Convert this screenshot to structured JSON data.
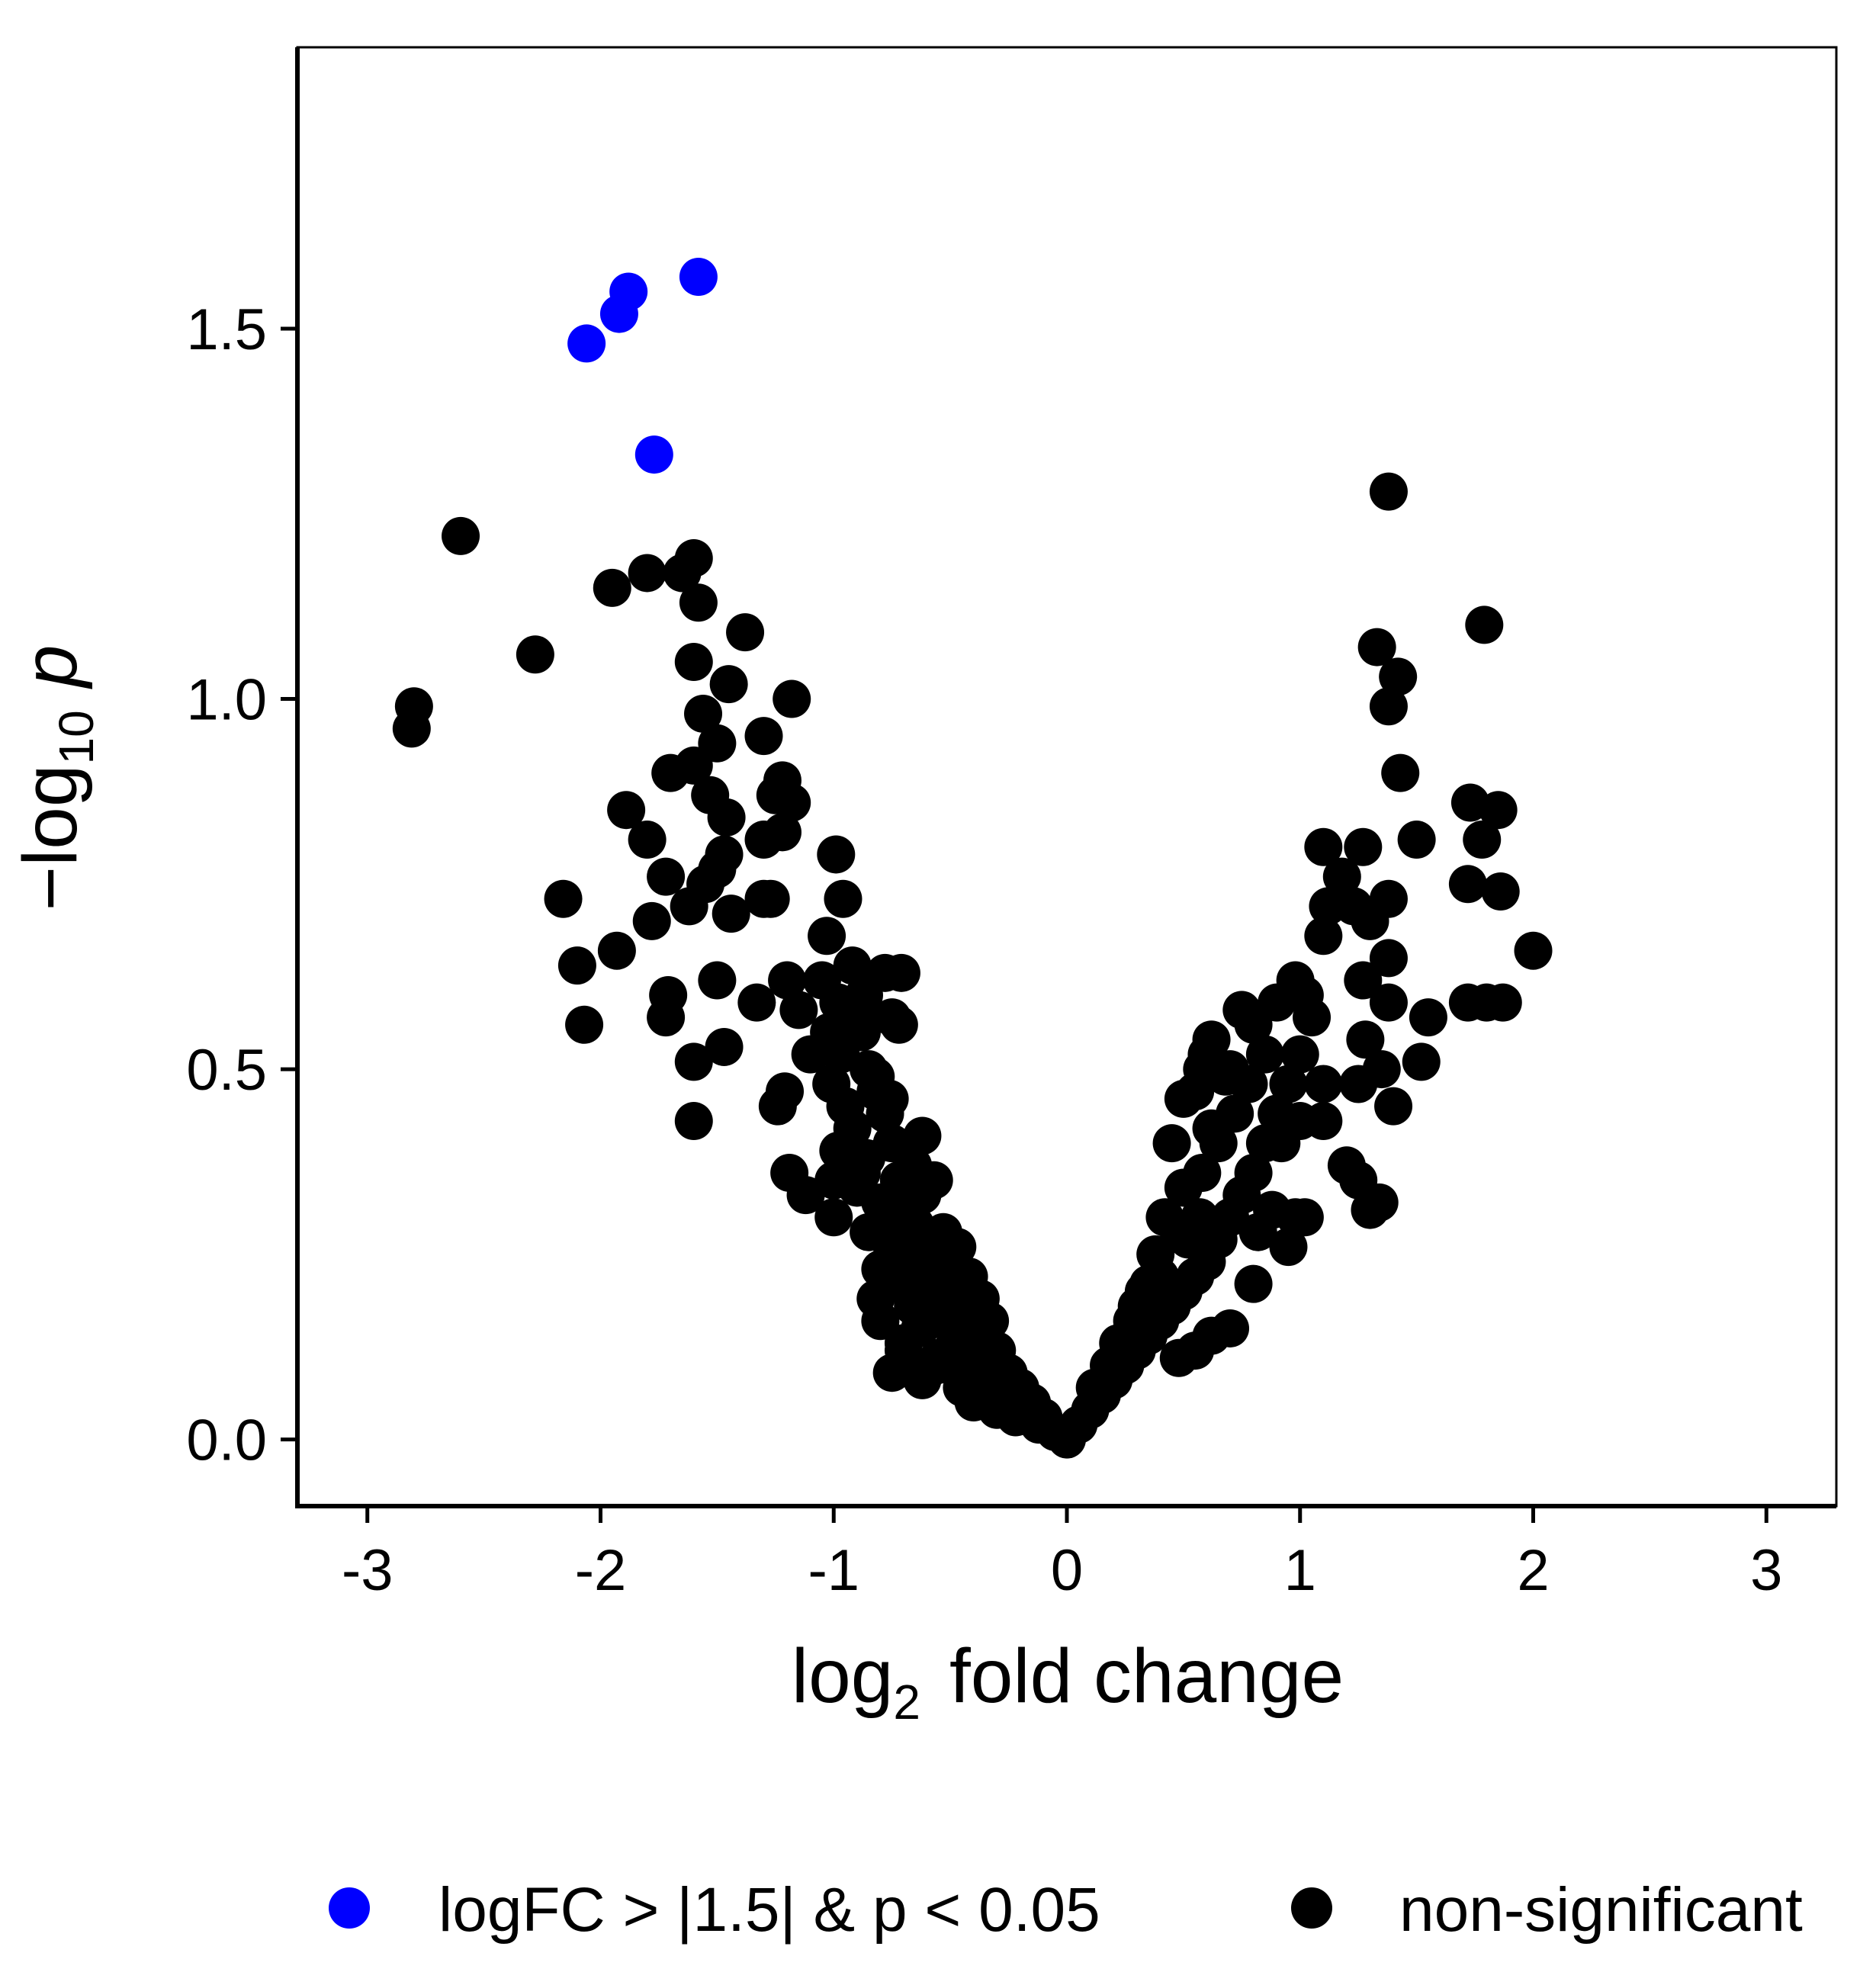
{
  "chart_data": {
    "type": "scatter",
    "title": "",
    "xlabel": {
      "base": "log",
      "sub": "2",
      "rest": "fold change"
    },
    "ylabel": {
      "prefix": "−log",
      "sub": "10",
      "var": "p"
    },
    "xlim": [
      -3.3,
      3.3
    ],
    "ylim": [
      -0.09,
      1.88
    ],
    "x_ticks": [
      "-3",
      "-2",
      "-1",
      "0",
      "1",
      "2",
      "3"
    ],
    "y_ticks": [
      "0.0",
      "0.5",
      "1.0",
      "1.5"
    ],
    "legend_position": "bottom",
    "series": [
      {
        "name": "logFC > |1.5| & p < 0.05",
        "color": "#0000ff",
        "points": [
          [
            -1.58,
            1.57
          ],
          [
            -1.88,
            1.55
          ],
          [
            -1.92,
            1.52
          ],
          [
            -2.06,
            1.48
          ],
          [
            -1.77,
            1.33
          ]
        ]
      },
      {
        "name": "non-significant",
        "color": "#000000",
        "points": [
          [
            -2.6,
            1.22
          ],
          [
            -2.8,
            0.99
          ],
          [
            -2.81,
            0.96
          ],
          [
            -2.28,
            1.06
          ],
          [
            -1.95,
            1.15
          ],
          [
            -1.8,
            1.17
          ],
          [
            -1.6,
            1.19
          ],
          [
            -1.65,
            1.17
          ],
          [
            -1.58,
            1.13
          ],
          [
            -1.38,
            1.09
          ],
          [
            -1.6,
            1.05
          ],
          [
            -1.45,
            1.02
          ],
          [
            -1.18,
            1.0
          ],
          [
            -1.56,
            0.98
          ],
          [
            -1.3,
            0.95
          ],
          [
            -1.5,
            0.94
          ],
          [
            -1.7,
            0.9
          ],
          [
            -1.6,
            0.91
          ],
          [
            -1.22,
            0.89
          ],
          [
            -1.25,
            0.87
          ],
          [
            -1.53,
            0.87
          ],
          [
            -1.18,
            0.86
          ],
          [
            -1.89,
            0.85
          ],
          [
            -1.46,
            0.84
          ],
          [
            -1.22,
            0.82
          ],
          [
            -1.8,
            0.81
          ],
          [
            -1.3,
            0.81
          ],
          [
            -1.47,
            0.79
          ],
          [
            -0.99,
            0.79
          ],
          [
            -1.5,
            0.77
          ],
          [
            -1.72,
            0.76
          ],
          [
            -1.55,
            0.75
          ],
          [
            -1.3,
            0.73
          ],
          [
            -2.16,
            0.73
          ],
          [
            -1.27,
            0.73
          ],
          [
            -0.96,
            0.73
          ],
          [
            -1.62,
            0.72
          ],
          [
            -1.44,
            0.71
          ],
          [
            -1.78,
            0.7
          ],
          [
            -1.03,
            0.68
          ],
          [
            -1.93,
            0.66
          ],
          [
            -2.1,
            0.64
          ],
          [
            -0.92,
            0.64
          ],
          [
            -0.71,
            0.63
          ],
          [
            -1.2,
            0.62
          ],
          [
            -1.5,
            0.62
          ],
          [
            -1.33,
            0.59
          ],
          [
            -1.71,
            0.6
          ],
          [
            -1.72,
            0.57
          ],
          [
            -2.07,
            0.56
          ],
          [
            -0.75,
            0.57
          ],
          [
            -0.72,
            0.56
          ],
          [
            -1.47,
            0.53
          ],
          [
            -1.6,
            0.51
          ],
          [
            -1.21,
            0.47
          ],
          [
            -1.24,
            0.45
          ],
          [
            -1.6,
            0.43
          ],
          [
            -1.19,
            0.36
          ],
          [
            -0.93,
            0.58
          ],
          [
            -0.88,
            0.55
          ],
          [
            -1.02,
            0.55
          ],
          [
            -0.97,
            0.52
          ],
          [
            -0.85,
            0.5
          ],
          [
            -1.01,
            0.48
          ],
          [
            -0.82,
            0.47
          ],
          [
            -0.95,
            0.45
          ],
          [
            -0.78,
            0.44
          ],
          [
            -0.92,
            0.42
          ],
          [
            -0.75,
            0.4
          ],
          [
            -0.98,
            0.39
          ],
          [
            -0.86,
            0.38
          ],
          [
            -0.66,
            0.37
          ],
          [
            -0.72,
            0.35
          ],
          [
            -0.9,
            0.34
          ],
          [
            -0.62,
            0.33
          ],
          [
            -0.8,
            0.32
          ],
          [
            -1.0,
            0.3
          ],
          [
            -0.7,
            0.3
          ],
          [
            -0.65,
            0.29
          ],
          [
            -0.85,
            0.28
          ],
          [
            -0.6,
            0.27
          ],
          [
            -0.75,
            0.26
          ],
          [
            -0.55,
            0.25
          ],
          [
            -0.68,
            0.24
          ],
          [
            -0.8,
            0.23
          ],
          [
            -0.5,
            0.22
          ],
          [
            -0.62,
            0.22
          ],
          [
            -0.72,
            0.21
          ],
          [
            -0.45,
            0.2
          ],
          [
            -0.58,
            0.19
          ],
          [
            -0.66,
            0.18
          ],
          [
            -0.4,
            0.17
          ],
          [
            -0.52,
            0.16
          ],
          [
            -0.63,
            0.15
          ],
          [
            -0.35,
            0.14
          ],
          [
            -0.48,
            0.13
          ],
          [
            -0.7,
            0.12
          ],
          [
            -0.3,
            0.12
          ],
          [
            -0.43,
            0.11
          ],
          [
            -0.56,
            0.1
          ],
          [
            -0.25,
            0.09
          ],
          [
            -0.38,
            0.09
          ],
          [
            -0.2,
            0.07
          ],
          [
            -0.32,
            0.07
          ],
          [
            -0.15,
            0.05
          ],
          [
            -0.27,
            0.06
          ],
          [
            -0.1,
            0.03
          ],
          [
            -0.18,
            0.04
          ],
          [
            -0.05,
            0.01
          ],
          [
            -0.12,
            0.02
          ],
          [
            0.0,
            0.0
          ],
          [
            0.05,
            0.02
          ],
          [
            0.1,
            0.04
          ],
          [
            0.15,
            0.06
          ],
          [
            0.2,
            0.08
          ],
          [
            0.25,
            0.1
          ],
          [
            0.3,
            0.12
          ],
          [
            0.35,
            0.14
          ],
          [
            0.4,
            0.16
          ],
          [
            0.45,
            0.18
          ],
          [
            0.5,
            0.2
          ],
          [
            0.55,
            0.22
          ],
          [
            0.6,
            0.24
          ],
          [
            0.65,
            0.27
          ],
          [
            0.7,
            0.3
          ],
          [
            0.75,
            0.33
          ],
          [
            0.8,
            0.36
          ],
          [
            0.85,
            0.4
          ],
          [
            0.9,
            0.44
          ],
          [
            0.95,
            0.48
          ],
          [
            1.0,
            0.52
          ],
          [
            0.8,
            0.56
          ],
          [
            0.9,
            0.59
          ],
          [
            0.98,
            0.62
          ],
          [
            0.6,
            0.52
          ],
          [
            0.55,
            0.47
          ],
          [
            0.7,
            0.5
          ],
          [
            0.42,
            0.3
          ],
          [
            0.5,
            0.34
          ],
          [
            0.65,
            0.4
          ],
          [
            0.72,
            0.44
          ],
          [
            0.78,
            0.48
          ],
          [
            0.85,
            0.52
          ],
          [
            0.62,
            0.42
          ],
          [
            0.38,
            0.25
          ],
          [
            0.48,
            0.28
          ],
          [
            0.58,
            0.36
          ],
          [
            0.3,
            0.18
          ],
          [
            0.35,
            0.21
          ],
          [
            0.22,
            0.13
          ],
          [
            0.28,
            0.16
          ],
          [
            0.18,
            0.1
          ],
          [
            0.12,
            0.07
          ],
          [
            0.88,
            0.31
          ],
          [
            0.82,
            0.28
          ],
          [
            0.95,
            0.26
          ],
          [
            0.8,
            0.21
          ],
          [
            0.7,
            0.15
          ],
          [
            0.55,
            0.12
          ],
          [
            0.62,
            0.14
          ],
          [
            0.48,
            0.11
          ],
          [
            1.02,
            0.6
          ],
          [
            1.05,
            0.57
          ],
          [
            1.0,
            0.43
          ],
          [
            0.92,
            0.4
          ],
          [
            1.1,
            0.48
          ],
          [
            0.98,
            0.3
          ],
          [
            1.1,
            0.8
          ],
          [
            1.12,
            0.72
          ],
          [
            1.1,
            0.68
          ],
          [
            1.18,
            0.76
          ],
          [
            1.27,
            0.8
          ],
          [
            1.23,
            0.72
          ],
          [
            1.3,
            0.7
          ],
          [
            1.38,
            0.65
          ],
          [
            1.38,
            0.73
          ],
          [
            1.33,
            1.07
          ],
          [
            1.42,
            1.03
          ],
          [
            1.38,
            0.99
          ],
          [
            1.43,
            0.9
          ],
          [
            1.38,
            1.28
          ],
          [
            1.79,
            1.1
          ],
          [
            1.73,
            0.86
          ],
          [
            1.85,
            0.85
          ],
          [
            1.5,
            0.81
          ],
          [
            1.78,
            0.81
          ],
          [
            1.72,
            0.75
          ],
          [
            1.86,
            0.74
          ],
          [
            2.0,
            0.66
          ],
          [
            1.27,
            0.62
          ],
          [
            1.38,
            0.59
          ],
          [
            1.55,
            0.57
          ],
          [
            1.72,
            0.59
          ],
          [
            1.8,
            0.59
          ],
          [
            1.87,
            0.59
          ],
          [
            1.28,
            0.54
          ],
          [
            1.35,
            0.5
          ],
          [
            1.25,
            0.48
          ],
          [
            1.52,
            0.51
          ],
          [
            1.4,
            0.45
          ],
          [
            1.2,
            0.37
          ],
          [
            1.25,
            0.35
          ],
          [
            1.3,
            0.31
          ],
          [
            1.34,
            0.32
          ],
          [
            1.1,
            0.43
          ],
          [
            1.02,
            0.3
          ],
          [
            0.58,
            0.5
          ],
          [
            0.62,
            0.54
          ],
          [
            0.75,
            0.58
          ],
          [
            0.45,
            0.4
          ],
          [
            0.5,
            0.46
          ],
          [
            0.68,
            0.49
          ],
          [
            0.52,
            0.27
          ],
          [
            0.4,
            0.22
          ],
          [
            0.33,
            0.2
          ],
          [
            0.57,
            0.3
          ],
          [
            -0.82,
            0.49
          ],
          [
            -0.76,
            0.46
          ],
          [
            -0.62,
            0.41
          ],
          [
            -0.88,
            0.36
          ],
          [
            -0.57,
            0.35
          ],
          [
            -0.78,
            0.31
          ],
          [
            -0.53,
            0.28
          ],
          [
            -0.47,
            0.26
          ],
          [
            -0.58,
            0.24
          ],
          [
            -0.42,
            0.22
          ],
          [
            -0.37,
            0.19
          ],
          [
            -0.33,
            0.16
          ],
          [
            -0.6,
            0.2
          ],
          [
            -0.51,
            0.18
          ],
          [
            -0.75,
            0.09
          ],
          [
            -0.62,
            0.08
          ],
          [
            -0.55,
            0.11
          ],
          [
            -0.45,
            0.07
          ],
          [
            -0.4,
            0.05
          ],
          [
            -0.3,
            0.04
          ],
          [
            -0.22,
            0.03
          ],
          [
            -0.7,
            0.13
          ],
          [
            -0.8,
            0.16
          ],
          [
            -0.82,
            0.19
          ],
          [
            -1.1,
            0.52
          ],
          [
            -1.15,
            0.58
          ],
          [
            -1.05,
            0.62
          ],
          [
            -0.98,
            0.59
          ],
          [
            -1.0,
            0.35
          ],
          [
            -1.12,
            0.33
          ],
          [
            -0.88,
            0.57
          ],
          [
            -0.78,
            0.63
          ],
          [
            -0.87,
            0.6
          ]
        ]
      }
    ]
  }
}
